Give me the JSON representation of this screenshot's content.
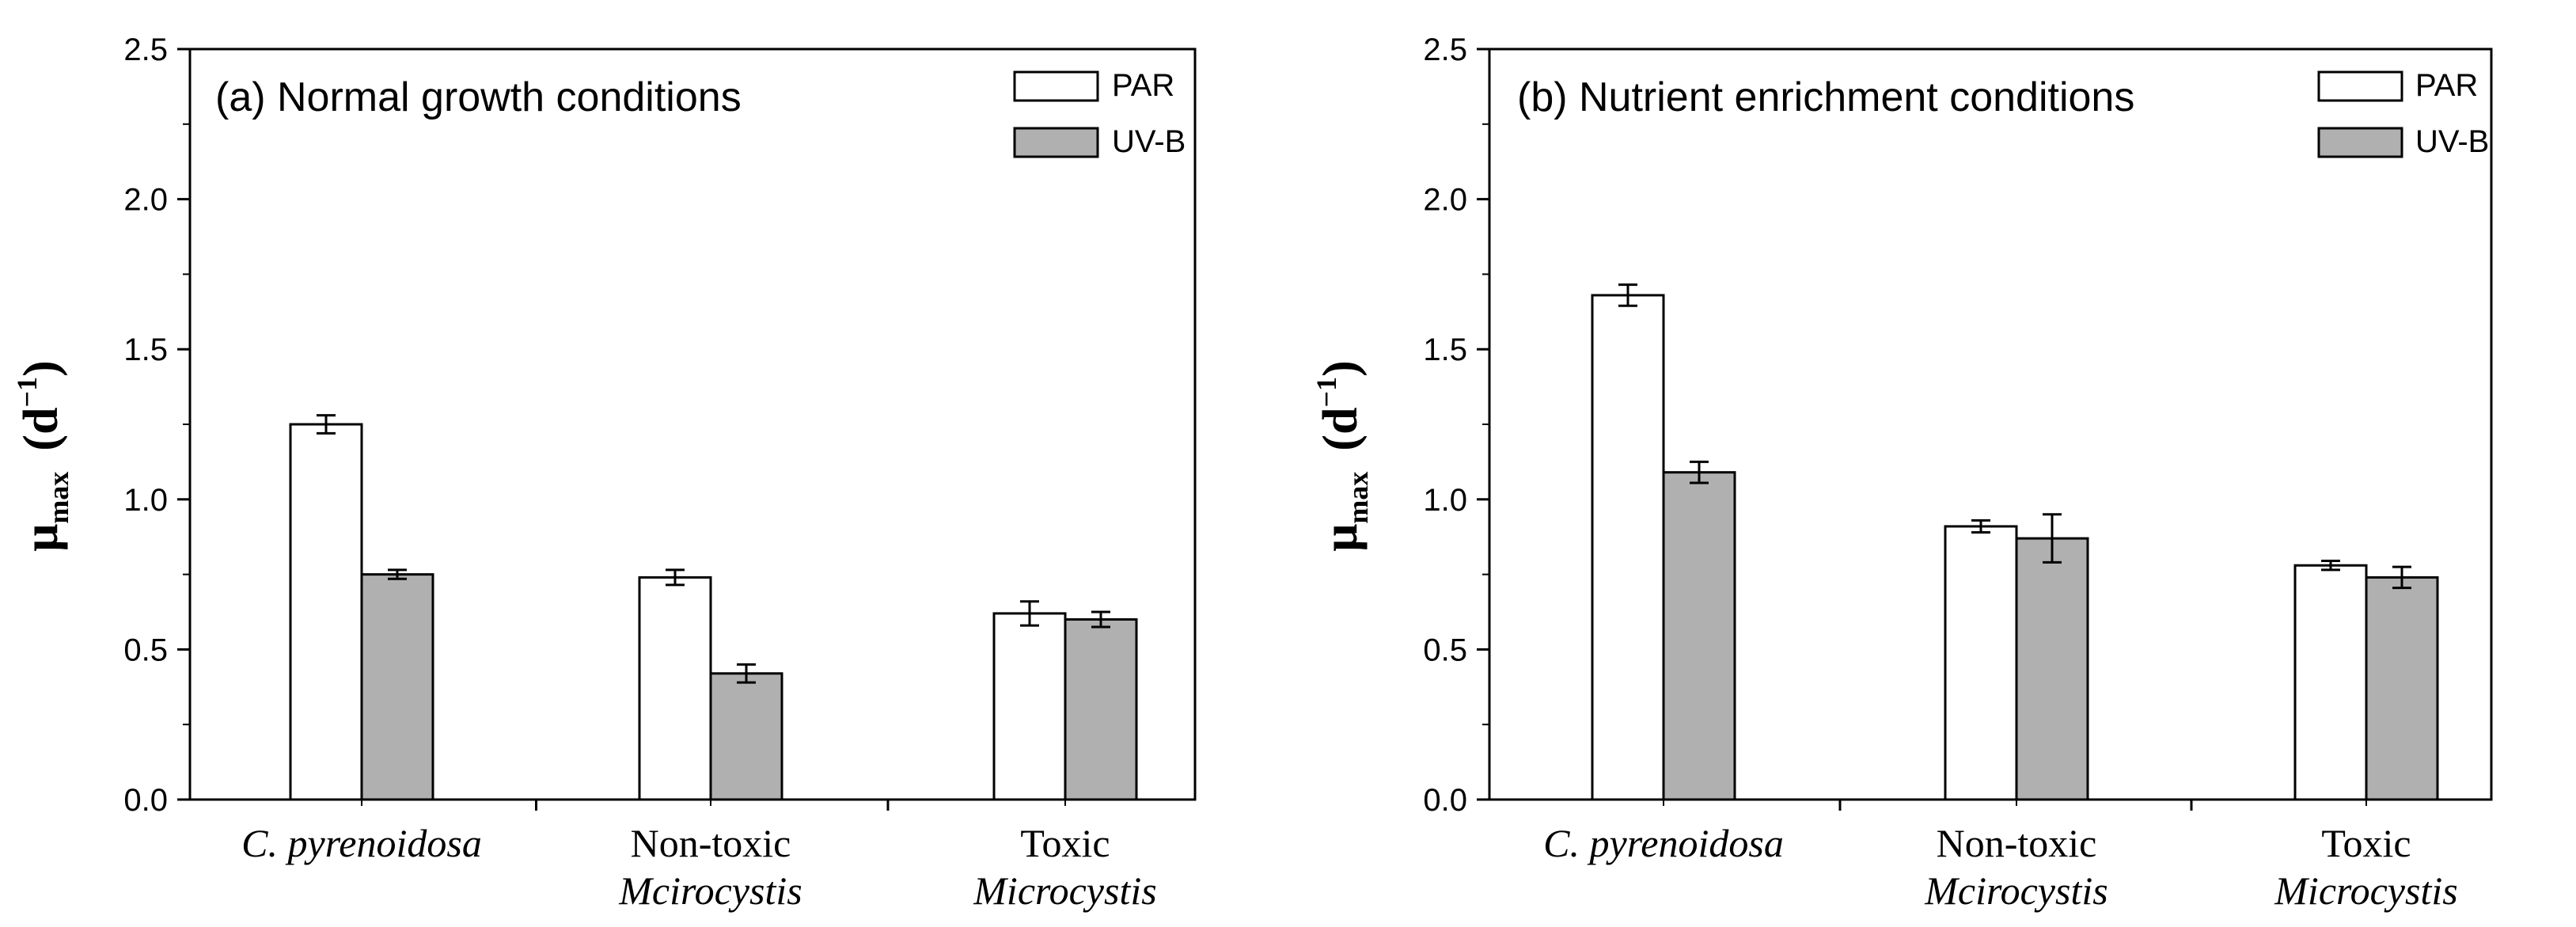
{
  "chart_data": [
    {
      "type": "bar",
      "title": "(a) Normal growth conditions",
      "ylabel": {
        "main": "μ",
        "sub": "max",
        "unit_open": "(d",
        "unit_sup": "−1",
        "unit_close": ")"
      },
      "xlabel": "",
      "ylim": [
        0,
        2.5
      ],
      "yticks": [
        "0.0",
        "0.5",
        "1.0",
        "1.5",
        "2.0",
        "2.5"
      ],
      "categories": [
        {
          "line1": "C. pyrenoidosa",
          "line1_italic": true,
          "line2": "",
          "line2_italic": false
        },
        {
          "line1": "Non-toxic",
          "line1_italic": false,
          "line2": "Mcirocystis",
          "line2_italic": true
        },
        {
          "line1": "Toxic",
          "line1_italic": false,
          "line2": "Microcystis",
          "line2_italic": true
        }
      ],
      "series": [
        {
          "name": "PAR",
          "color": "#ffffff",
          "values": [
            1.25,
            0.74,
            0.62
          ],
          "errors": [
            0.03,
            0.025,
            0.04
          ]
        },
        {
          "name": "UV-B",
          "color": "#b0b0b0",
          "values": [
            0.75,
            0.42,
            0.6
          ],
          "errors": [
            0.015,
            0.03,
            0.025
          ]
        }
      ],
      "legend_position": "top-right"
    },
    {
      "type": "bar",
      "title": "(b) Nutrient enrichment conditions",
      "ylabel": {
        "main": "μ",
        "sub": "max",
        "unit_open": "(d",
        "unit_sup": "−1",
        "unit_close": ")"
      },
      "xlabel": "",
      "ylim": [
        0,
        2.5
      ],
      "yticks": [
        "0.0",
        "0.5",
        "1.0",
        "1.5",
        "2.0",
        "2.5"
      ],
      "categories": [
        {
          "line1": "C. pyrenoidosa",
          "line1_italic": true,
          "line2": "",
          "line2_italic": false
        },
        {
          "line1": "Non-toxic",
          "line1_italic": false,
          "line2": "Mcirocystis",
          "line2_italic": true
        },
        {
          "line1": "Toxic",
          "line1_italic": false,
          "line2": "Microcystis",
          "line2_italic": true
        }
      ],
      "series": [
        {
          "name": "PAR",
          "color": "#ffffff",
          "values": [
            1.68,
            0.91,
            0.78
          ],
          "errors": [
            0.035,
            0.02,
            0.015
          ]
        },
        {
          "name": "UV-B",
          "color": "#b0b0b0",
          "values": [
            1.09,
            0.87,
            0.74
          ],
          "errors": [
            0.035,
            0.08,
            0.035
          ]
        }
      ],
      "legend_position": "top-right"
    }
  ]
}
